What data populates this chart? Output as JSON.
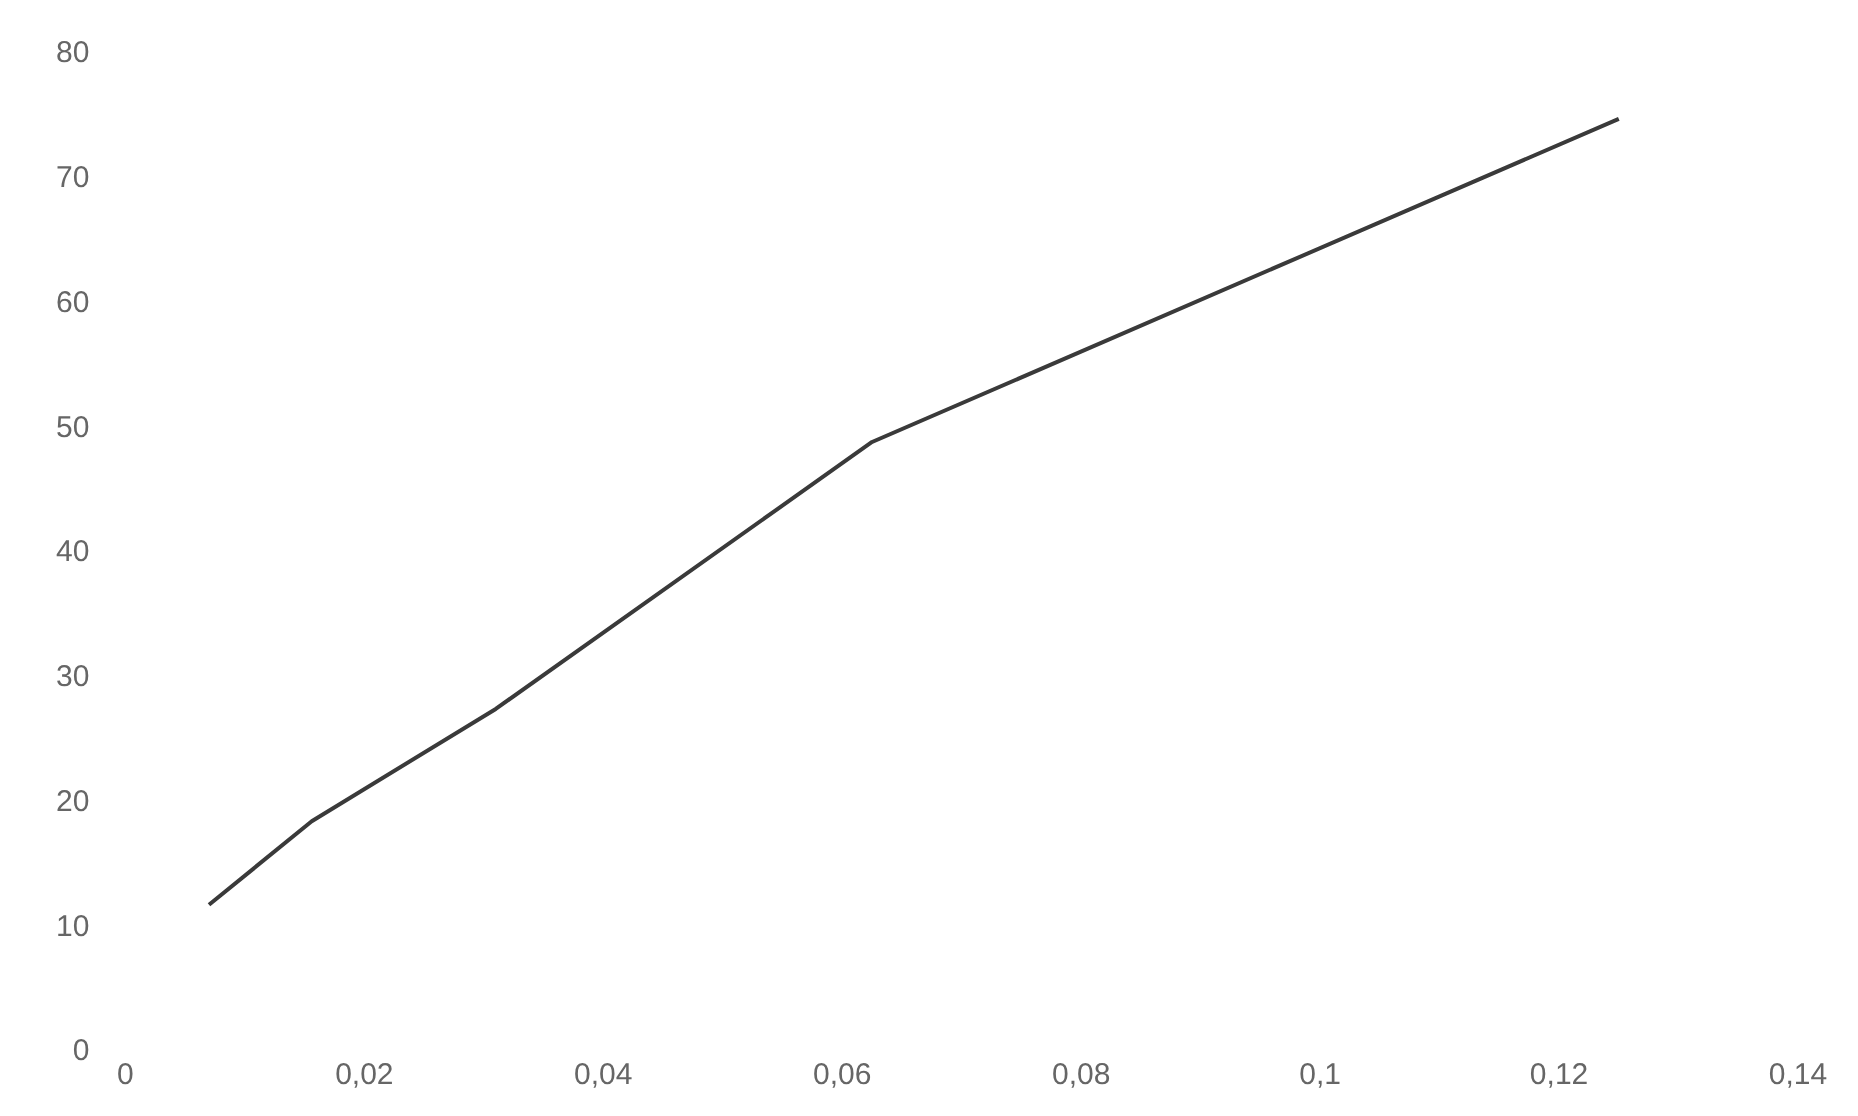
{
  "chart_data": {
    "type": "line",
    "x": [
      0.007,
      0.0156,
      0.031,
      0.0625,
      0.125
    ],
    "series": [
      {
        "color": "#3a3a3a",
        "values": [
          11.8,
          18.5,
          27.5,
          48.9,
          74.8
        ]
      }
    ],
    "xlim": [
      0,
      0.14
    ],
    "xticks": [
      0,
      {
        "value": 0.02,
        "label": "0,02"
      },
      {
        "value": 0.04,
        "label": "0,04"
      },
      {
        "value": 0.06,
        "label": "0,06"
      },
      {
        "value": 0.08,
        "label": "0,08"
      },
      {
        "value": 0.1,
        "label": "0,1"
      },
      {
        "value": 0.12,
        "label": "0,12"
      },
      {
        "value": 0.14,
        "label": "0,14"
      }
    ],
    "ylim": [
      0,
      80
    ],
    "yticks": [
      0,
      10,
      20,
      30,
      40,
      50,
      60,
      70,
      80
    ],
    "grid": false,
    "legend": false,
    "marker": "none",
    "line_style": "solid"
  }
}
